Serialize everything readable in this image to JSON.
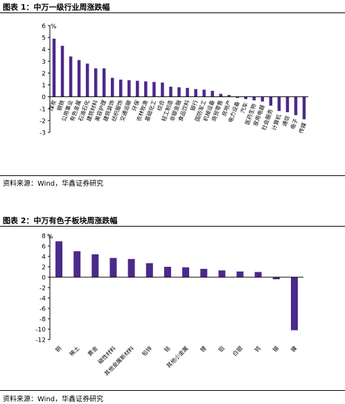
{
  "figures": [
    {
      "title": "图表 1：中万一级行业周涨跌幅",
      "source": "资料来源：Wind，华鑫证券研究"
    },
    {
      "title": "图表 2：中万有色子板块周涨跌幅",
      "source": "资料来源：Wind，华鑫证券研究"
    }
  ],
  "bar_color": "#4b2a8a",
  "chart_data": [
    {
      "type": "bar",
      "title": "",
      "xlabel": "",
      "ylabel": "%",
      "ylim": [
        -3,
        6
      ],
      "yticks": [
        6,
        5,
        4,
        3,
        2,
        1,
        0,
        -1,
        -2,
        -3
      ],
      "grid": false,
      "categories": [
        "煤炭",
        "钢铁",
        "公用事业",
        "有色金属",
        "石油石化",
        "建筑材料",
        "美容护理",
        "建筑装饰",
        "纺织服饰",
        "交通运输",
        "环保",
        "农林牧渔",
        "基础化工",
        "综合",
        "轻工制造",
        "非银金融",
        "食品饮料",
        "银行",
        "国防军工",
        "机械设备",
        "商贸零售",
        "房地产",
        "电力设备",
        "汽车",
        "医药生物",
        "家用电器",
        "社会服务",
        "计算机",
        "通信",
        "电子",
        "传媒"
      ],
      "values": [
        4.9,
        4.3,
        3.4,
        3.1,
        2.8,
        2.4,
        2.4,
        1.6,
        1.45,
        1.4,
        1.35,
        1.3,
        1.25,
        1.2,
        0.85,
        0.8,
        0.75,
        0.65,
        0.6,
        0.5,
        0.25,
        0.15,
        -0.1,
        -0.2,
        -0.3,
        -0.4,
        -0.75,
        -1.2,
        -1.3,
        -1.55,
        -1.9
      ]
    },
    {
      "type": "bar",
      "title": "",
      "xlabel": "",
      "ylabel": "%",
      "ylim": [
        -12,
        8
      ],
      "yticks": [
        8,
        6,
        4,
        2,
        0,
        -2,
        -4,
        -6,
        -8,
        -10,
        -12
      ],
      "grid": false,
      "categories": [
        "铜",
        "稀土",
        "黄金",
        "磁性材料",
        "其他金属新材料",
        "铅锌",
        "钴",
        "其他小金属",
        "锂",
        "铝",
        "白银",
        "钨",
        "锡",
        "镍"
      ],
      "values": [
        6.9,
        5.0,
        4.4,
        3.7,
        3.5,
        2.7,
        2.0,
        1.9,
        1.6,
        1.3,
        1.1,
        1.0,
        -0.4,
        -10.2
      ]
    }
  ]
}
